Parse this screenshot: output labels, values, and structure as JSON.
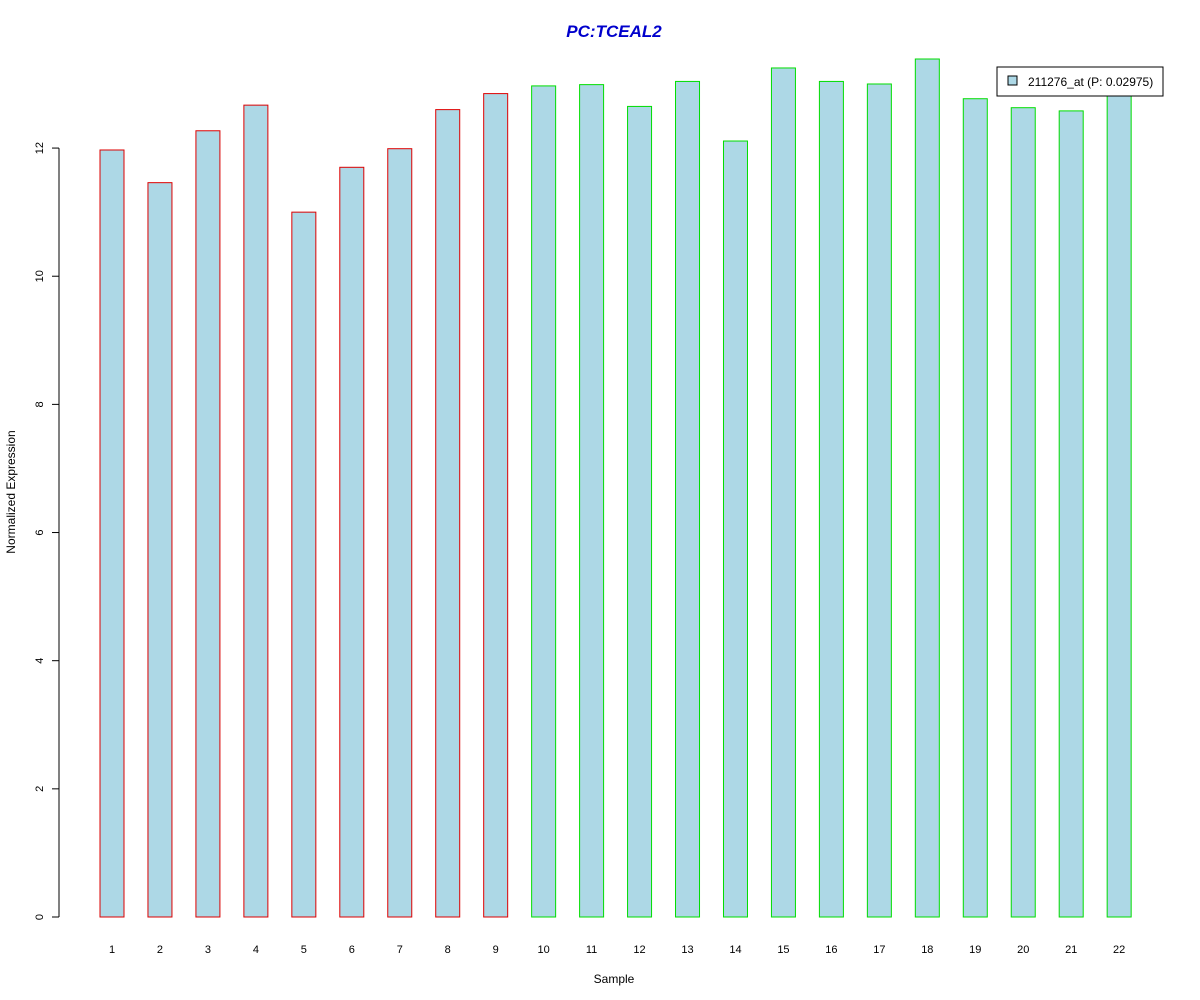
{
  "chart_data": {
    "type": "bar",
    "title": "PC:TCEAL2",
    "xlabel": "Sample",
    "ylabel": "Normalized Expression",
    "categories": [
      "1",
      "2",
      "3",
      "4",
      "5",
      "6",
      "7",
      "8",
      "9",
      "10",
      "11",
      "12",
      "13",
      "14",
      "15",
      "16",
      "17",
      "18",
      "19",
      "20",
      "21",
      "22"
    ],
    "series": [
      {
        "name": "211276_at (P: 0.02975)",
        "values": [
          11.97,
          11.46,
          12.27,
          12.67,
          11.0,
          11.7,
          11.99,
          12.6,
          12.85,
          12.97,
          12.99,
          12.65,
          13.04,
          12.11,
          13.25,
          13.04,
          13.0,
          13.39,
          12.77,
          12.63,
          12.58,
          12.9
        ]
      }
    ],
    "groups": [
      {
        "categories": [
          "1",
          "2",
          "3",
          "4",
          "5",
          "6",
          "7",
          "8",
          "9"
        ],
        "border_color": "#dd0000"
      },
      {
        "categories": [
          "10",
          "11",
          "12",
          "13",
          "14",
          "15",
          "16",
          "17",
          "18",
          "19",
          "20",
          "21",
          "22"
        ],
        "border_color": "#00dd00"
      }
    ],
    "fill_color": "#add8e6",
    "title_color": "#0000cc",
    "yticks": [
      0,
      2,
      4,
      6,
      8,
      10,
      12
    ],
    "ylim": [
      0,
      13.39
    ],
    "grid": false,
    "legend_position": "top-right"
  }
}
